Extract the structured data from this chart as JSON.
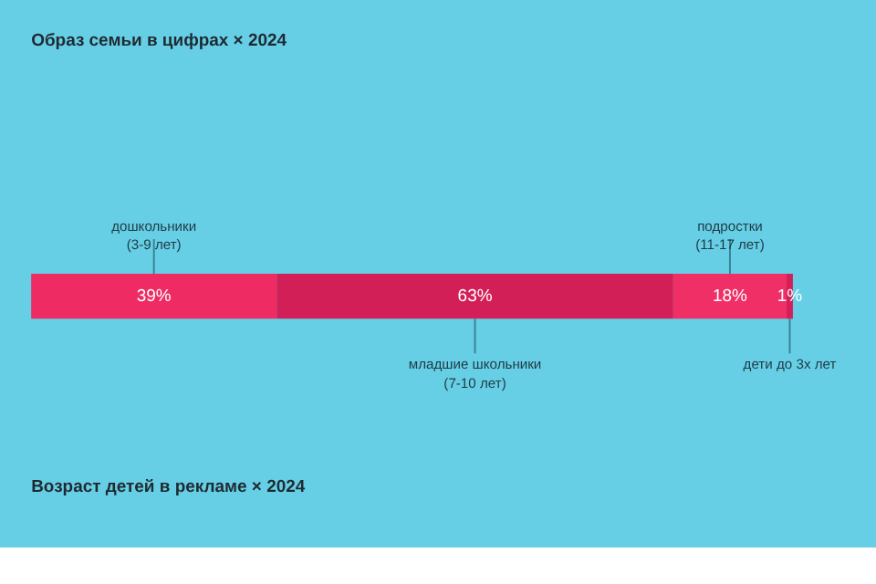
{
  "chart_data": {
    "type": "bar",
    "orientation": "horizontal",
    "stacked": true,
    "title": "Образ семьи в цифрах × 2024",
    "annotations": [
      "Возраст детей в рекламе × 2024"
    ],
    "categories": [
      null
    ],
    "series": [
      {
        "name": "дошкольники\n(3-9 лет)",
        "color": "#ee2b63",
        "values": [
          39
        ],
        "value_labels": [
          "39%"
        ]
      },
      {
        "name": "младшие школьники\n(7-10 лет)",
        "color": "#d21f58",
        "values": [
          63
        ],
        "value_labels": [
          "63%"
        ]
      },
      {
        "name": "подростки\n(11-17 лет)",
        "color": "#ef2f66",
        "values": [
          18
        ],
        "value_labels": [
          "18%"
        ]
      },
      {
        "name": "дети до 3х лет",
        "color": "#d41f59",
        "values": [
          1
        ],
        "value_labels": [
          "1%"
        ]
      }
    ]
  }
}
